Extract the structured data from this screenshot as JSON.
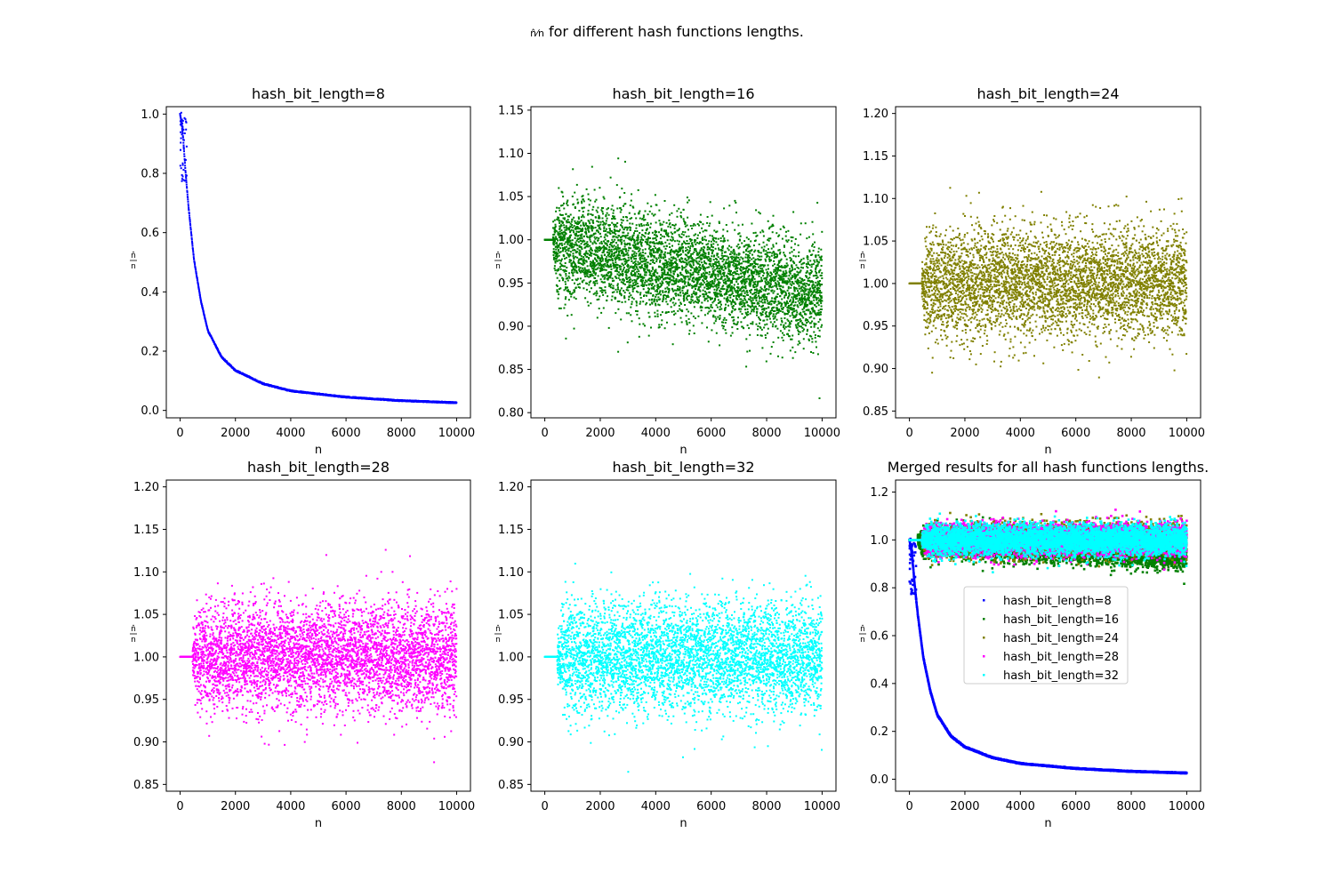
{
  "figure": {
    "suptitle_fraction_num": "n̂",
    "suptitle_fraction_den": "n",
    "suptitle_text": " for different hash functions lengths."
  },
  "colors": {
    "hash_bit_length=8": "#0000ff",
    "hash_bit_length=16": "#008000",
    "hash_bit_length=24": "#808000",
    "hash_bit_length=28": "#ff00ff",
    "hash_bit_length=32": "#00ffff"
  },
  "chart_data": [
    {
      "type": "scatter",
      "title": "hash_bit_length=8",
      "xlabel": "n",
      "ylabel_num": "n̂",
      "ylabel_den": "n",
      "xlim": [
        -500,
        10500
      ],
      "ylim": [
        -0.025,
        1.025
      ],
      "xticks": [
        "0",
        "2000",
        "4000",
        "6000",
        "8000",
        "10000"
      ],
      "yticks": [
        "0.0",
        "0.2",
        "0.4",
        "0.6",
        "0.8",
        "1.0"
      ],
      "ytick_values": [
        0.0,
        0.2,
        0.4,
        0.6,
        0.8,
        1.0
      ],
      "series": [
        {
          "color": "#0000ff",
          "model": "decay",
          "points": [
            [
              0,
              1.0
            ],
            [
              50,
              0.97
            ],
            [
              100,
              0.93
            ],
            [
              200,
              0.8
            ],
            [
              300,
              0.69
            ],
            [
              500,
              0.51
            ],
            [
              750,
              0.37
            ],
            [
              1000,
              0.27
            ],
            [
              1500,
              0.18
            ],
            [
              2000,
              0.135
            ],
            [
              3000,
              0.09
            ],
            [
              4000,
              0.066
            ],
            [
              6000,
              0.045
            ],
            [
              8000,
              0.033
            ],
            [
              10000,
              0.026
            ]
          ]
        }
      ]
    },
    {
      "type": "scatter",
      "title": "hash_bit_length=16",
      "xlabel": "n",
      "ylabel_num": "n̂",
      "ylabel_den": "n",
      "xlim": [
        -500,
        10500
      ],
      "ylim": [
        0.794,
        1.154
      ],
      "xticks": [
        "0",
        "2000",
        "4000",
        "6000",
        "8000",
        "10000"
      ],
      "yticks": [
        "0.80",
        "0.85",
        "0.90",
        "0.95",
        "1.00",
        "1.05",
        "1.10",
        "1.15"
      ],
      "ytick_values": [
        0.8,
        0.85,
        0.9,
        0.95,
        1.0,
        1.05,
        1.1,
        1.15
      ],
      "series": [
        {
          "color": "#008000",
          "model": "noise",
          "flat_until": 300,
          "mean_start": 0.995,
          "mean_end": 0.935,
          "spread": 0.06,
          "min_observed": 0.806,
          "max_observed": 1.138
        }
      ]
    },
    {
      "type": "scatter",
      "title": "hash_bit_length=24",
      "xlabel": "n",
      "ylabel_num": "n̂",
      "ylabel_den": "n",
      "xlim": [
        -500,
        10500
      ],
      "ylim": [
        0.842,
        1.208
      ],
      "xticks": [
        "0",
        "2000",
        "4000",
        "6000",
        "8000",
        "10000"
      ],
      "yticks": [
        "0.85",
        "0.90",
        "0.95",
        "1.00",
        "1.05",
        "1.10",
        "1.15",
        "1.20"
      ],
      "ytick_values": [
        0.85,
        0.9,
        0.95,
        1.0,
        1.05,
        1.1,
        1.15,
        1.2
      ],
      "series": [
        {
          "color": "#808000",
          "model": "noise",
          "flat_until": 450,
          "mean_start": 1.0,
          "mean_end": 1.0,
          "spread": 0.065,
          "min_observed": 0.848,
          "max_observed": 1.192
        }
      ]
    },
    {
      "type": "scatter",
      "title": "hash_bit_length=28",
      "xlabel": "n",
      "ylabel_num": "n̂",
      "ylabel_den": "n",
      "xlim": [
        -500,
        10500
      ],
      "ylim": [
        0.842,
        1.208
      ],
      "xticks": [
        "0",
        "2000",
        "4000",
        "6000",
        "8000",
        "10000"
      ],
      "yticks": [
        "0.85",
        "0.90",
        "0.95",
        "1.00",
        "1.05",
        "1.10",
        "1.15",
        "1.20"
      ],
      "ytick_values": [
        0.85,
        0.9,
        0.95,
        1.0,
        1.05,
        1.1,
        1.15,
        1.2
      ],
      "series": [
        {
          "color": "#ff00ff",
          "model": "noise",
          "flat_until": 450,
          "mean_start": 1.0,
          "mean_end": 1.0,
          "spread": 0.065,
          "min_observed": 0.848,
          "max_observed": 1.192
        }
      ]
    },
    {
      "type": "scatter",
      "title": "hash_bit_length=32",
      "xlabel": "n",
      "ylabel_num": "n̂",
      "ylabel_den": "n",
      "xlim": [
        -500,
        10500
      ],
      "ylim": [
        0.842,
        1.208
      ],
      "xticks": [
        "0",
        "2000",
        "4000",
        "6000",
        "8000",
        "10000"
      ],
      "yticks": [
        "0.85",
        "0.90",
        "0.95",
        "1.00",
        "1.05",
        "1.10",
        "1.15",
        "1.20"
      ],
      "ytick_values": [
        0.85,
        0.9,
        0.95,
        1.0,
        1.05,
        1.1,
        1.15,
        1.2
      ],
      "series": [
        {
          "color": "#00ffff",
          "model": "noise",
          "flat_until": 450,
          "mean_start": 1.0,
          "mean_end": 1.0,
          "spread": 0.065,
          "min_observed": 0.848,
          "max_observed": 1.192
        }
      ]
    },
    {
      "type": "scatter",
      "title": "Merged results for all hash functions lengths.",
      "xlabel": "n",
      "ylabel_num": "n̂",
      "ylabel_den": "n",
      "xlim": [
        -500,
        10500
      ],
      "ylim": [
        -0.05,
        1.25
      ],
      "xticks": [
        "0",
        "2000",
        "4000",
        "6000",
        "8000",
        "10000"
      ],
      "yticks": [
        "0.0",
        "0.2",
        "0.4",
        "0.6",
        "0.8",
        "1.0",
        "1.2"
      ],
      "ytick_values": [
        0.0,
        0.2,
        0.4,
        0.6,
        0.8,
        1.0,
        1.2
      ],
      "legend_position": "center-right",
      "series": [
        {
          "name": "hash_bit_length=8",
          "color": "#0000ff",
          "ref": 0
        },
        {
          "name": "hash_bit_length=16",
          "color": "#008000",
          "ref": 1
        },
        {
          "name": "hash_bit_length=24",
          "color": "#808000",
          "ref": 2
        },
        {
          "name": "hash_bit_length=28",
          "color": "#ff00ff",
          "ref": 3
        },
        {
          "name": "hash_bit_length=32",
          "color": "#00ffff",
          "ref": 4
        }
      ]
    }
  ]
}
